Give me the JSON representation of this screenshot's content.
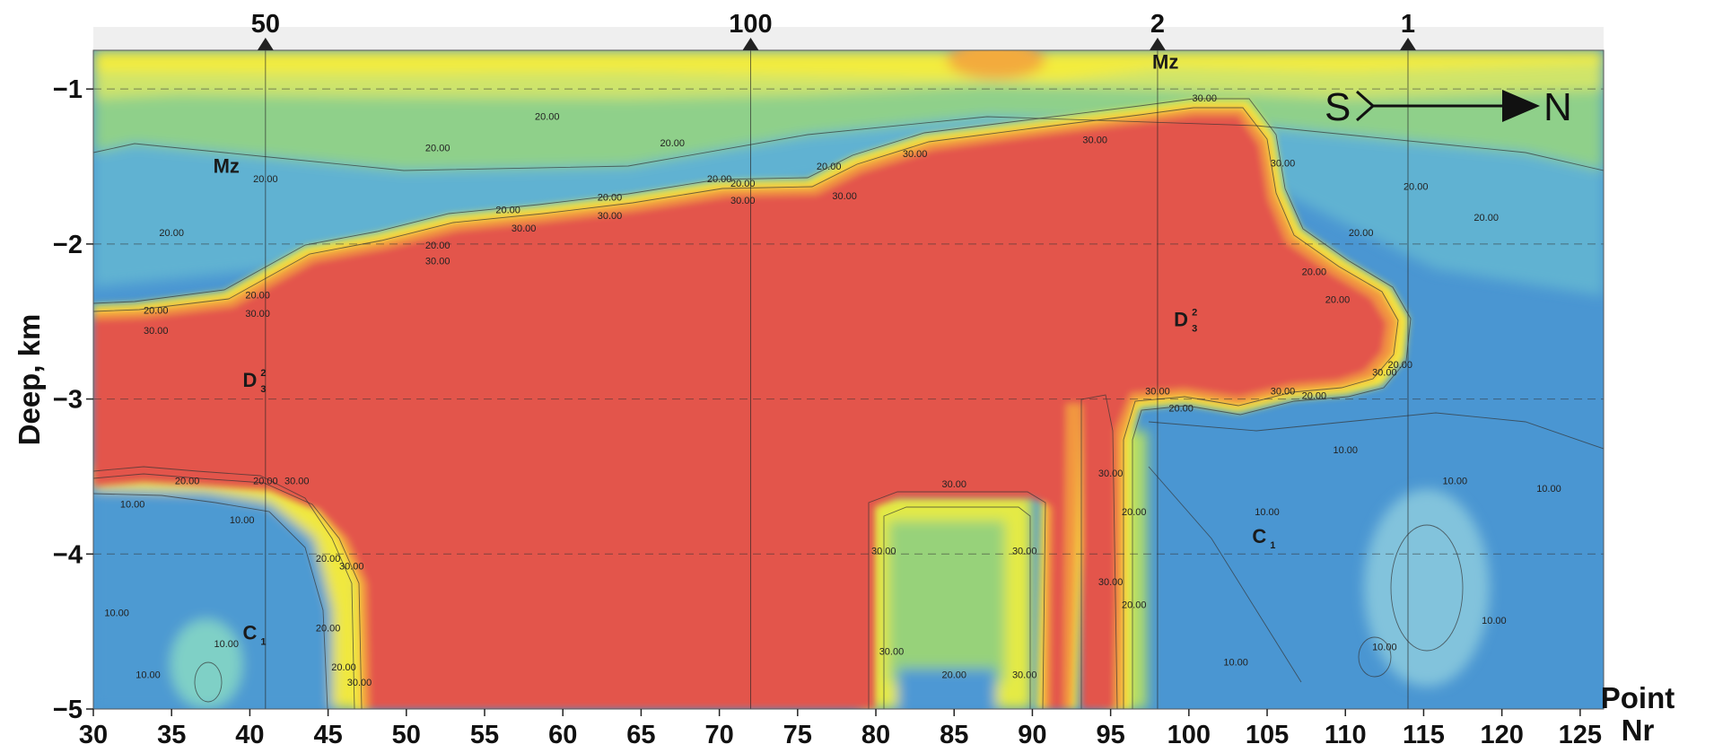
{
  "chart_data": {
    "type": "heatmap",
    "title": "",
    "xlabel": "Point Nr",
    "ylabel": "Deep, km",
    "xlabel_parts": [
      "Point",
      "Nr"
    ],
    "xlim": [
      30,
      126.5
    ],
    "ylim": [
      -5,
      -0.75
    ],
    "x_ticks": [
      30,
      35,
      40,
      45,
      50,
      55,
      60,
      65,
      70,
      75,
      80,
      85,
      90,
      95,
      100,
      105,
      110,
      115,
      120,
      125
    ],
    "y_ticks": [
      -1,
      -2,
      -3,
      -4,
      -5
    ],
    "grid": "dashed horizontal lines at -1, -2, -3, -4",
    "colors": {
      "low": "#3f8fd0",
      "mid_low": "#5cb8c8",
      "mid": "#8ed090",
      "mid_high": "#f0ec3a",
      "high": "#e4574a"
    },
    "profile_markers": [
      {
        "label": "50",
        "x": 41
      },
      {
        "label": "100",
        "x": 72
      },
      {
        "label": "2",
        "x": 98
      },
      {
        "label": "1",
        "x": 114
      }
    ],
    "contour_levels": [
      10,
      20,
      30
    ],
    "contour_labels": [
      {
        "text": "20.00",
        "x": 34,
        "y": -2.45
      },
      {
        "text": "30.00",
        "x": 34,
        "y": -2.58
      },
      {
        "text": "20.00",
        "x": 40.5,
        "y": -2.35
      },
      {
        "text": "30.00",
        "x": 40.5,
        "y": -2.47
      },
      {
        "text": "20.00",
        "x": 52,
        "y": -2.03
      },
      {
        "text": "30.00",
        "x": 52,
        "y": -2.13
      },
      {
        "text": "20.00",
        "x": 56.5,
        "y": -1.8
      },
      {
        "text": "30.00",
        "x": 57.5,
        "y": -1.92
      },
      {
        "text": "20.00",
        "x": 63,
        "y": -1.72
      },
      {
        "text": "30.00",
        "x": 63,
        "y": -1.84
      },
      {
        "text": "20.00",
        "x": 71.5,
        "y": -1.63
      },
      {
        "text": "30.00",
        "x": 71.5,
        "y": -1.74
      },
      {
        "text": "30.00",
        "x": 78,
        "y": -1.71
      },
      {
        "text": "30.00",
        "x": 82.5,
        "y": -1.44
      },
      {
        "text": "30.00",
        "x": 94,
        "y": -1.35
      },
      {
        "text": "30.00",
        "x": 101,
        "y": -1.08
      },
      {
        "text": "30.00",
        "x": 106,
        "y": -1.5
      },
      {
        "text": "20.00",
        "x": 59,
        "y": -1.2
      },
      {
        "text": "20.00",
        "x": 52,
        "y": -1.4
      },
      {
        "text": "20.00",
        "x": 67,
        "y": -1.37
      },
      {
        "text": "20.00",
        "x": 70,
        "y": -1.6
      },
      {
        "text": "20.00",
        "x": 77,
        "y": -1.52
      },
      {
        "text": "20.00",
        "x": 41,
        "y": -1.6
      },
      {
        "text": "20.00",
        "x": 35,
        "y": -1.95
      },
      {
        "text": "20.00",
        "x": 111,
        "y": -1.95
      },
      {
        "text": "20.00",
        "x": 114.5,
        "y": -1.65
      },
      {
        "text": "20.00",
        "x": 119,
        "y": -1.85
      },
      {
        "text": "20.00",
        "x": 108,
        "y": -2.2
      },
      {
        "text": "20.00",
        "x": 109.5,
        "y": -2.38
      },
      {
        "text": "30.00",
        "x": 98,
        "y": -2.97
      },
      {
        "text": "20.00",
        "x": 99.5,
        "y": -3.08
      },
      {
        "text": "30.00",
        "x": 106,
        "y": -2.97
      },
      {
        "text": "20.00",
        "x": 108,
        "y": -3.0
      },
      {
        "text": "30.00",
        "x": 112.5,
        "y": -2.85
      },
      {
        "text": "20.00",
        "x": 113.5,
        "y": -2.8
      },
      {
        "text": "10.00",
        "x": 110,
        "y": -3.35
      },
      {
        "text": "10.00",
        "x": 117,
        "y": -3.55
      },
      {
        "text": "10.00",
        "x": 123,
        "y": -3.6
      },
      {
        "text": "10.00",
        "x": 105,
        "y": -3.75
      },
      {
        "text": "10.00",
        "x": 103,
        "y": -4.72
      },
      {
        "text": "10.00",
        "x": 112.5,
        "y": -4.62
      },
      {
        "text": "10.00",
        "x": 32.5,
        "y": -3.7
      },
      {
        "text": "10.00",
        "x": 39.5,
        "y": -3.8
      },
      {
        "text": "20.00",
        "x": 36,
        "y": -3.55
      },
      {
        "text": "20.00",
        "x": 41,
        "y": -3.55
      },
      {
        "text": "30.00",
        "x": 43,
        "y": -3.55
      },
      {
        "text": "10.00",
        "x": 31.5,
        "y": -4.4
      },
      {
        "text": "10.00",
        "x": 38.5,
        "y": -4.6
      },
      {
        "text": "10.00",
        "x": 33.5,
        "y": -4.8
      },
      {
        "text": "20.00",
        "x": 45,
        "y": -4.05
      },
      {
        "text": "30.00",
        "x": 46.5,
        "y": -4.1
      },
      {
        "text": "20.00",
        "x": 45,
        "y": -4.5
      },
      {
        "text": "20.00",
        "x": 46,
        "y": -4.75
      },
      {
        "text": "30.00",
        "x": 47,
        "y": -4.85
      },
      {
        "text": "30.00",
        "x": 85,
        "y": -3.57
      },
      {
        "text": "30.00",
        "x": 80.5,
        "y": -4.0
      },
      {
        "text": "30.00",
        "x": 81,
        "y": -4.65
      },
      {
        "text": "20.00",
        "x": 85,
        "y": -4.8
      },
      {
        "text": "30.00",
        "x": 89.5,
        "y": -4.0
      },
      {
        "text": "30.00",
        "x": 89.5,
        "y": -4.8
      },
      {
        "text": "30.00",
        "x": 95,
        "y": -3.5
      },
      {
        "text": "20.00",
        "x": 96.5,
        "y": -3.75
      },
      {
        "text": "30.00",
        "x": 95,
        "y": -4.2
      },
      {
        "text": "20.00",
        "x": 96.5,
        "y": -4.35
      },
      {
        "text": "10.00",
        "x": 119.5,
        "y": -4.45
      }
    ],
    "unit_labels": [
      {
        "text": "Mz",
        "x": 38.5,
        "y": -1.54
      },
      {
        "text": "Mz",
        "x": 98.5,
        "y": -0.87
      },
      {
        "text": "D",
        "sup": "2",
        "sub": "3",
        "x": 40,
        "y": -2.92
      },
      {
        "text": "D",
        "sup": "2",
        "sub": "3",
        "x": 99.5,
        "y": -2.53
      },
      {
        "text": "C",
        "sub": "1",
        "x": 40,
        "y": -4.55
      },
      {
        "text": "C",
        "sub": "1",
        "x": 104.5,
        "y": -3.93
      }
    ],
    "direction": {
      "from": "S",
      "to": "N"
    }
  }
}
